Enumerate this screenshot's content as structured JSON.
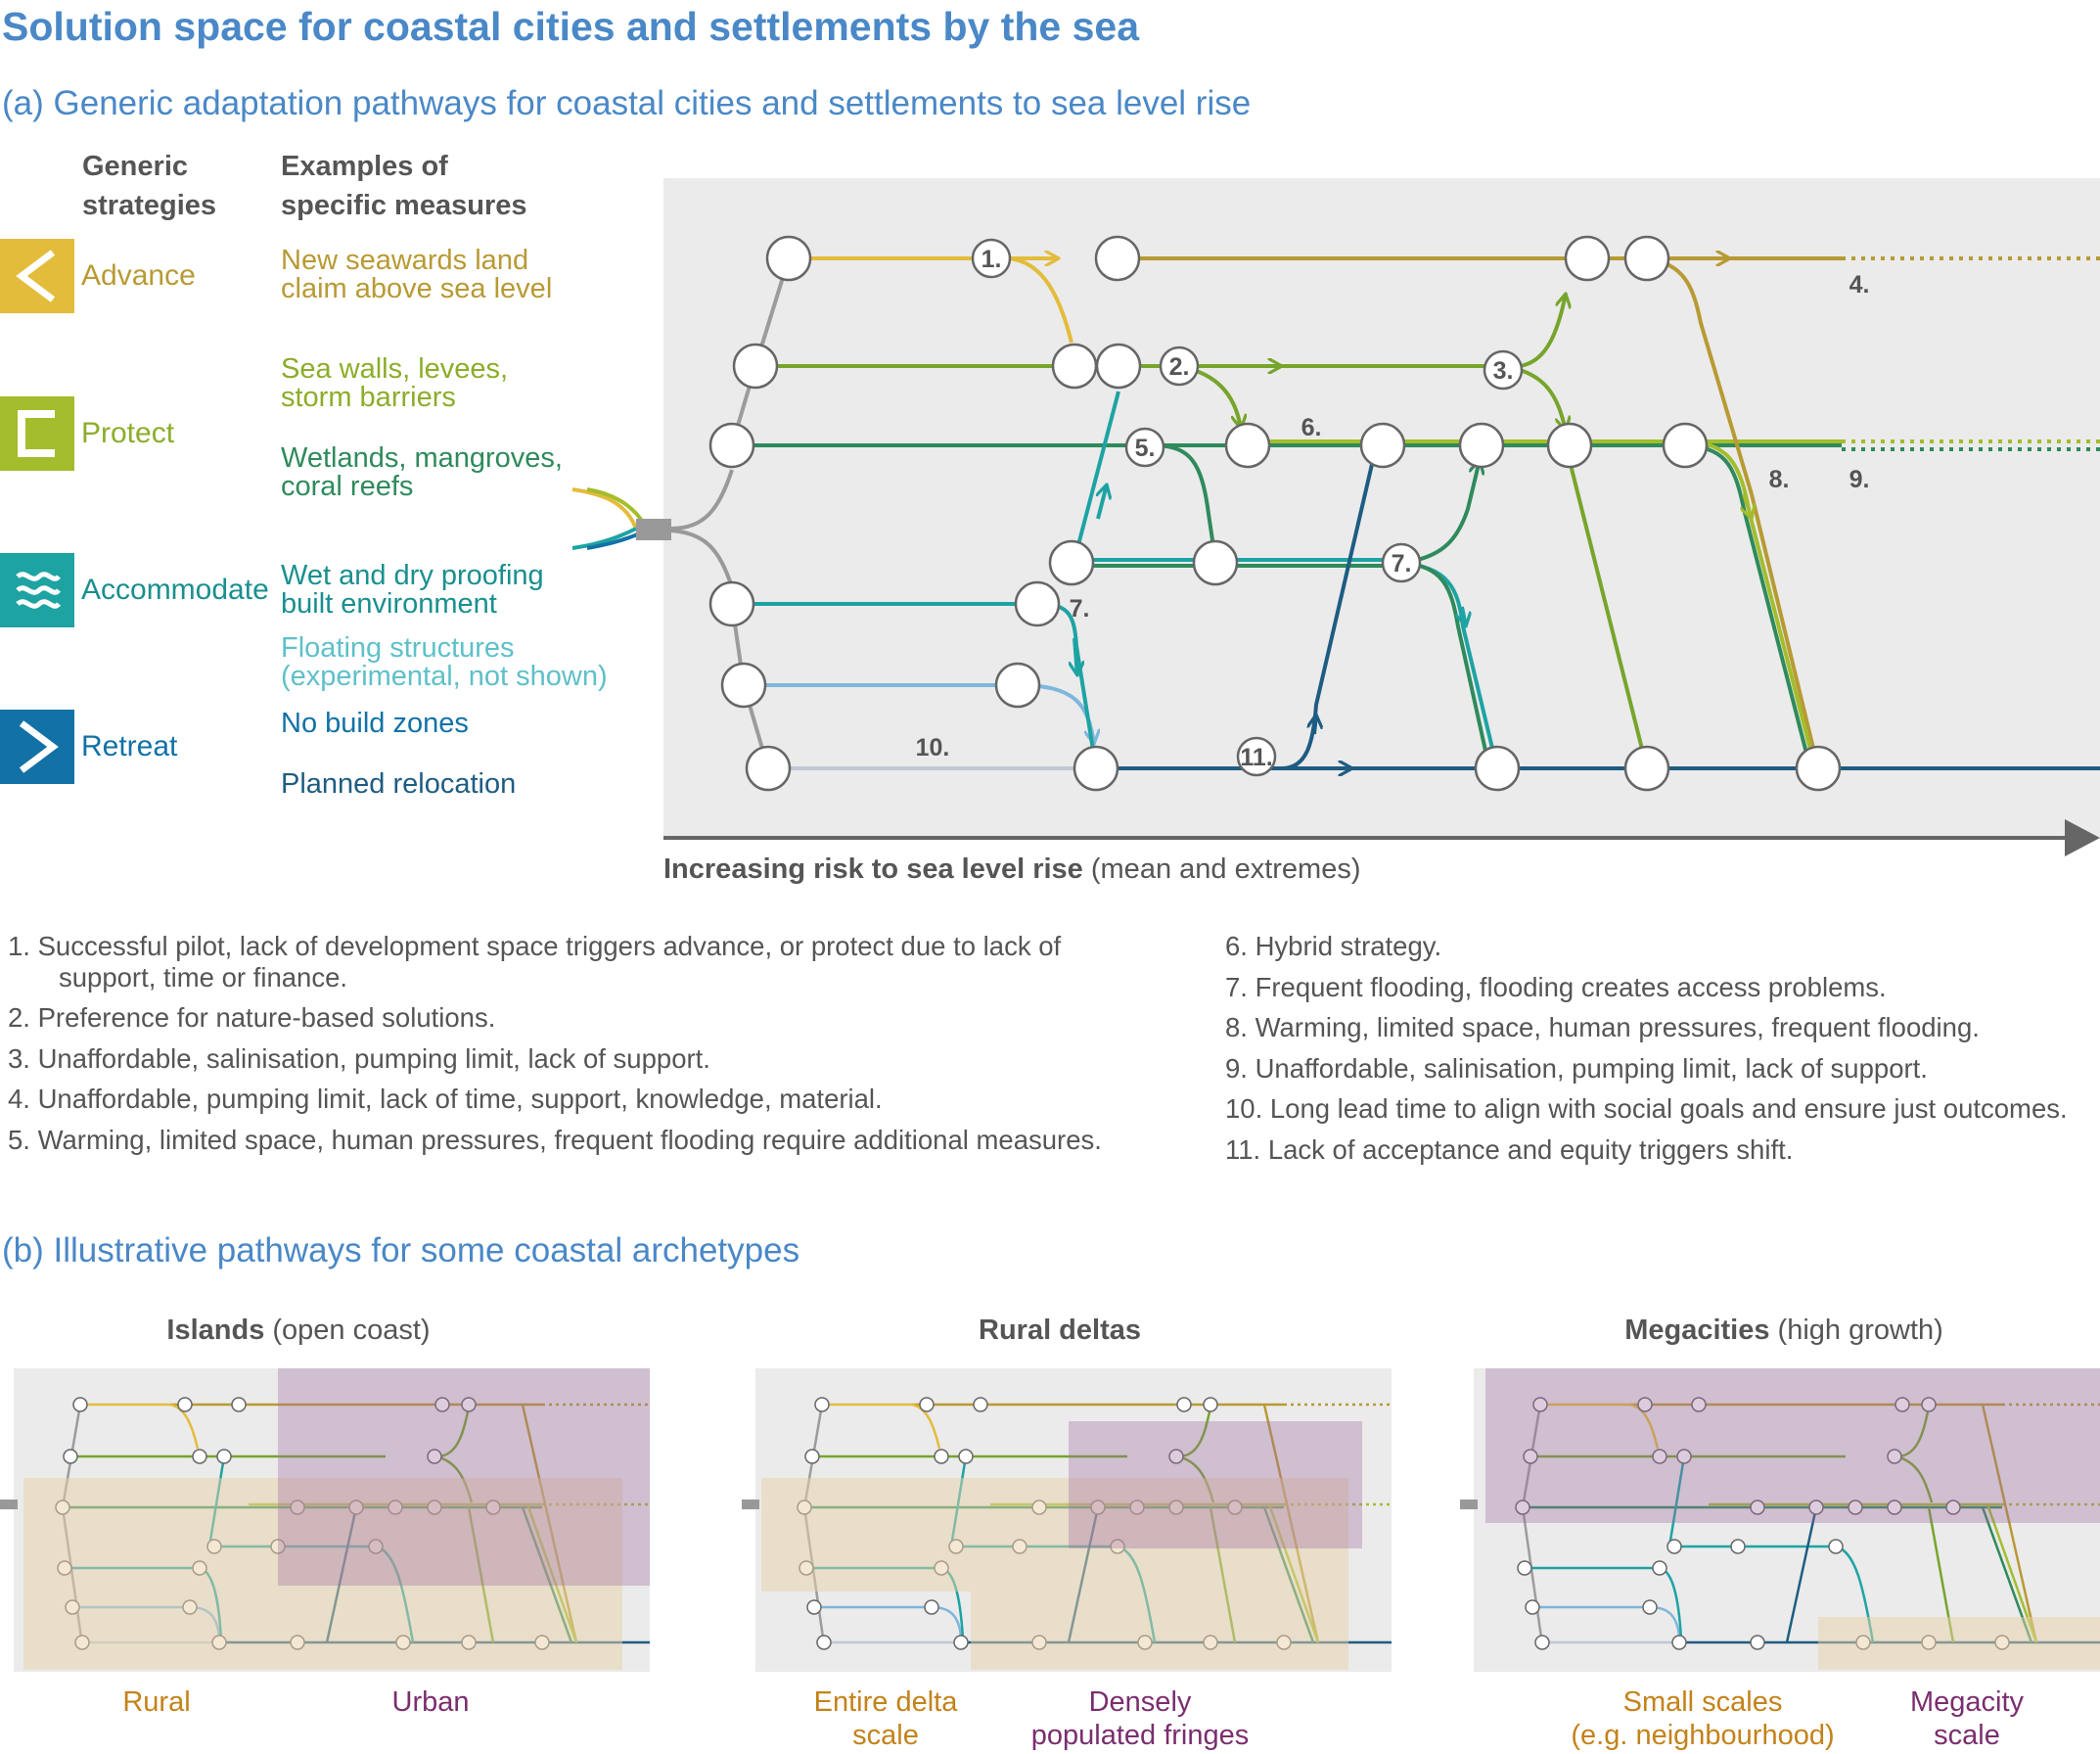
{
  "title": "Solution space for coastal cities and settlements by the sea",
  "panel_a": {
    "heading": "(a) Generic adaptation pathways for coastal cities and settlements to sea level rise",
    "col_strategies": [
      "Generic",
      "strategies"
    ],
    "col_measures": [
      "Examples of",
      "specific measures"
    ],
    "strategies": {
      "advance": {
        "name": "Advance",
        "color": "#e3bc3c",
        "icon": "less-than-chevron-icon",
        "measures": [
          "New seawards land",
          "claim above sea level"
        ]
      },
      "protect": {
        "name": "Protect",
        "color": "#a3bd2c",
        "icon": "bracket-icon",
        "measure1": [
          "Sea walls, levees,",
          "storm barriers"
        ],
        "measure2": [
          "Wetlands, mangroves,",
          "coral reefs"
        ]
      },
      "accommodate": {
        "name": "Accommodate",
        "color": "#1ea3a3",
        "icon": "waves-icon",
        "measure1": [
          "Wet and dry proofing",
          "built environment"
        ],
        "measure2": [
          "Floating structures",
          "(experimental, not shown)"
        ]
      },
      "retreat": {
        "name": "Retreat",
        "color": "#1272a6",
        "icon": "greater-than-chevron-icon",
        "measure1": "No build zones",
        "measure2": "Planned relocation"
      }
    },
    "markers": [
      "1.",
      "2.",
      "3.",
      "4.",
      "5.",
      "6.",
      "7.",
      "8.",
      "9.",
      "10.",
      "11."
    ],
    "axis_bold": "Increasing risk to sea level rise",
    "axis_rest": " (mean and extremes)",
    "notes_left": [
      "1. Successful pilot, lack of development space triggers advance, or protect due to lack of",
      "support, time or finance.",
      "2. Preference for nature-based solutions.",
      "3. Unaffordable, salinisation, pumping limit, lack of support.",
      "4. Unaffordable, pumping limit, lack of time, support, knowledge, material.",
      "5. Warming, limited space, human pressures, frequent flooding require additional measures."
    ],
    "notes_right": [
      "6. Hybrid strategy.",
      "7. Frequent flooding, flooding creates access problems.",
      "8. Warming, limited space, human pressures, frequent flooding.",
      "9. Unaffordable, salinisation, pumping limit, lack of support.",
      "10. Long lead time to align with social goals and ensure just outcomes.",
      "11. Lack of acceptance and equity triggers shift."
    ]
  },
  "panel_b": {
    "heading": "(b) Illustrative pathways for some coastal archetypes",
    "islands": {
      "title_bold": "Islands",
      "title_rest": " (open coast)",
      "cap1": "Rural",
      "cap2": "Urban"
    },
    "deltas": {
      "title_bold": "Rural deltas",
      "cap1": [
        "Entire delta",
        "scale"
      ],
      "cap2": [
        "Densely",
        "populated fringes"
      ]
    },
    "megacities": {
      "title_bold": "Megacities",
      "title_rest": " (high growth)",
      "cap1": [
        "Small scales",
        "(e.g. neighbourhood)"
      ],
      "cap2": [
        "Megacity",
        "scale"
      ]
    }
  },
  "colors": {
    "advance_line": "#e3bc3c",
    "advance_dark": "#b89a34",
    "protect_line": "#77a52c",
    "wetland_line": "#2f8a5c",
    "accommodate_line": "#1ea3a3",
    "floating_line": "#7fb6dc",
    "retreat_line": "#1e5c82",
    "planned_grey": "#c2c6d4",
    "rural_shade": "#e8d2a8",
    "urban_shade": "#9e6e9e"
  }
}
